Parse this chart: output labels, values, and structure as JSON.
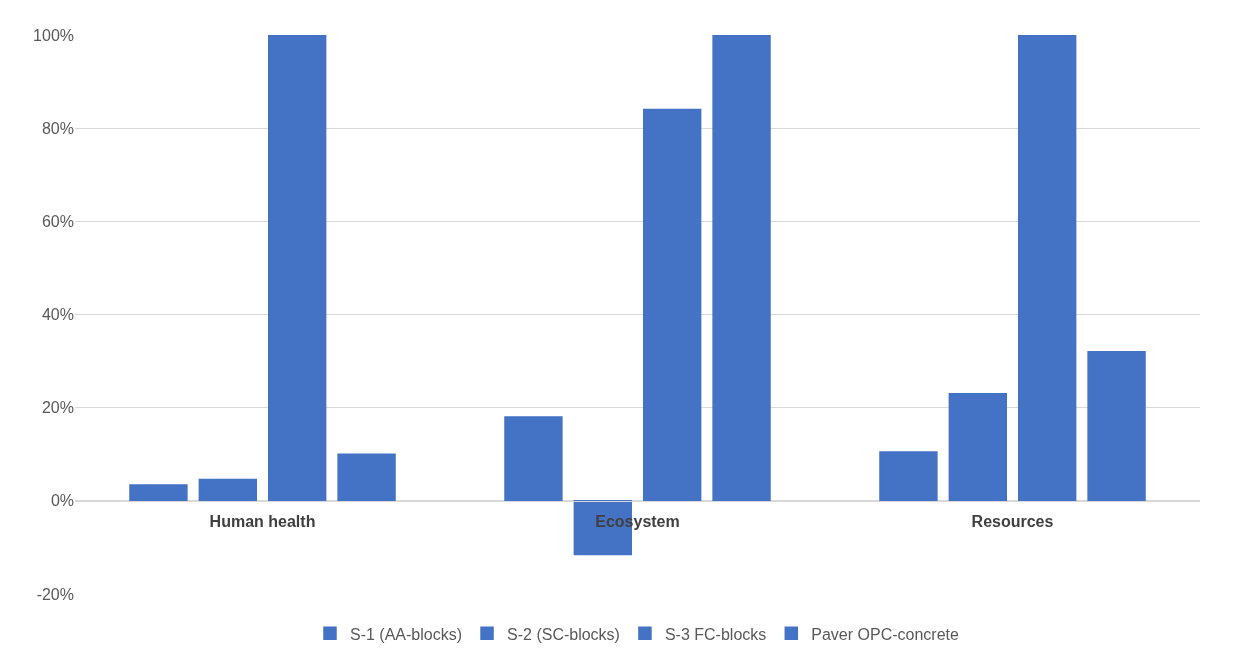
{
  "chart_data": {
    "type": "bar",
    "categories": [
      "Human health",
      "Ecosystem",
      "Resources"
    ],
    "series": [
      {
        "name": "S-1 (AA-blocks)",
        "color": "#4472c4",
        "values": [
          3.4,
          18,
          10.5
        ]
      },
      {
        "name": "S-2 (SC-blocks)",
        "color": "#4472c4",
        "values": [
          4.6,
          -11.5,
          23
        ]
      },
      {
        "name": "S-3 FC-blocks",
        "color": "#4472c4",
        "values": [
          100,
          84,
          100
        ]
      },
      {
        "name": "Paver OPC-concrete",
        "color": "#4472c4",
        "values": [
          10,
          100,
          32
        ]
      }
    ],
    "ylim": [
      -20,
      100
    ],
    "yticks": [
      {
        "value": -20,
        "label": "-20%"
      },
      {
        "value": 0,
        "label": "0%"
      },
      {
        "value": 20,
        "label": "20%"
      },
      {
        "value": 40,
        "label": "40%"
      },
      {
        "value": 60,
        "label": "60%"
      },
      {
        "value": 80,
        "label": "80%"
      },
      {
        "value": 100,
        "label": "100%"
      }
    ],
    "grid": "y",
    "legend": "bottom"
  }
}
